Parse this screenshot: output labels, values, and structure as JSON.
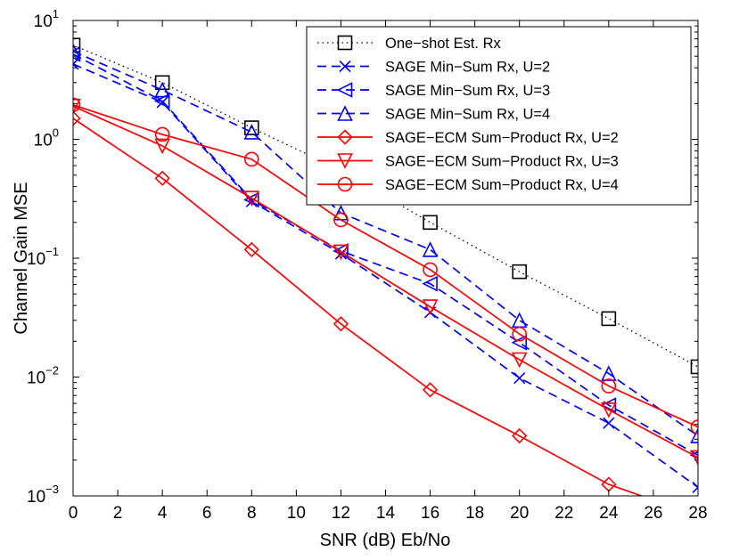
{
  "chart_data": {
    "type": "line",
    "xlabel": "SNR (dB) Eb/No",
    "ylabel": "Channel Gain MSE",
    "xlim": [
      0,
      28
    ],
    "ylim": [
      0.001,
      10
    ],
    "yscale": "log",
    "grid": false,
    "legend_position": "top-right",
    "x_ticks": [
      "0",
      "2",
      "4",
      "6",
      "8",
      "10",
      "12",
      "14",
      "16",
      "18",
      "20",
      "22",
      "24",
      "26",
      "28"
    ],
    "y_ticks": [
      {
        "base": "10",
        "exp": "1"
      },
      {
        "base": "10",
        "exp": "0"
      },
      {
        "base": "10",
        "exp": "-1"
      },
      {
        "base": "10",
        "exp": "-2"
      },
      {
        "base": "10",
        "exp": "-3"
      }
    ],
    "x": [
      0,
      4,
      8,
      12,
      16,
      20,
      24,
      28
    ],
    "series": [
      {
        "name": "One−shot Est. Rx",
        "color": "#000000",
        "line": "dotted",
        "marker": "square",
        "values": [
          6.2,
          3.0,
          1.25,
          0.55,
          0.2,
          0.077,
          0.031,
          0.0122
        ]
      },
      {
        "name": "SAGE Min−Sum Rx, U=2",
        "color": "#0000ff",
        "line": "dashed",
        "marker": "x",
        "values": [
          4.3,
          2.05,
          0.3,
          0.109,
          0.035,
          0.0098,
          0.0041,
          0.00118
        ]
      },
      {
        "name": "SAGE Min−Sum Rx, U=3",
        "color": "#0000ff",
        "line": "dashed",
        "marker": "triangle-left",
        "values": [
          5.2,
          2.1,
          0.31,
          0.115,
          0.061,
          0.0195,
          0.0058,
          0.0022
        ]
      },
      {
        "name": "SAGE Min−Sum Rx, U=4",
        "color": "#0000ff",
        "line": "dashed",
        "marker": "triangle-up",
        "values": [
          5.5,
          2.6,
          1.15,
          0.24,
          0.118,
          0.03,
          0.0107,
          0.0032
        ]
      },
      {
        "name": "SAGE−ECM Sum−Product Rx, U=2",
        "color": "#ff0000",
        "line": "solid",
        "marker": "diamond",
        "values": [
          1.5,
          0.47,
          0.118,
          0.028,
          0.0078,
          0.0032,
          0.00125,
          0.00068
        ]
      },
      {
        "name": "SAGE−ECM Sum−Product Rx, U=3",
        "color": "#ff0000",
        "line": "solid",
        "marker": "triangle-down",
        "values": [
          1.9,
          0.88,
          0.32,
          0.113,
          0.039,
          0.014,
          0.0053,
          0.0021
        ]
      },
      {
        "name": "SAGE−ECM Sum−Product Rx, U=4",
        "color": "#ff0000",
        "line": "solid",
        "marker": "circle",
        "values": [
          1.95,
          1.1,
          0.68,
          0.21,
          0.08,
          0.023,
          0.0084,
          0.0038
        ]
      }
    ]
  }
}
